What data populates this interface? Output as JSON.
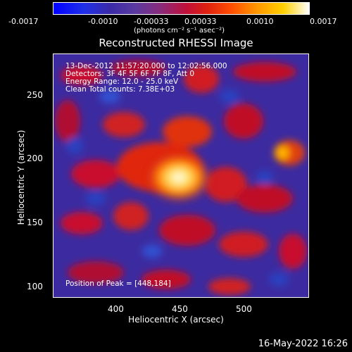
{
  "colorbar": {
    "ticks": [
      "-0.0017",
      "-0.0010",
      "-0.00033",
      "0.00033",
      "0.0010",
      "0.0017"
    ],
    "units": "(photons cm⁻² s⁻¹ asec⁻²)"
  },
  "title": "Reconstructed RHESSI Image",
  "info": {
    "time": "13-Dec-2012 11:57:20.000 to 12:02:56.000",
    "detectors": "Detectors: 3F 4F 5F 6F 7F 8F, Att 0",
    "energy": "Energy Range: 12.0 - 25.0 keV",
    "clean": "Clean     Total counts: 7.38E+03",
    "peak": "Position of Peak = [448,184]"
  },
  "axes": {
    "xlabel": "Heliocentric X (arcsec)",
    "ylabel": "Heliocentric Y (arcsec)",
    "xticks": [
      "400",
      "450",
      "500"
    ],
    "yticks": [
      "250",
      "200",
      "150",
      "100"
    ]
  },
  "footer": "16-May-2022 16:26",
  "colors": {
    "bg": "#000000",
    "low": "#3a2aa0",
    "mid": "#c0103a",
    "high": "#ffffff"
  }
}
